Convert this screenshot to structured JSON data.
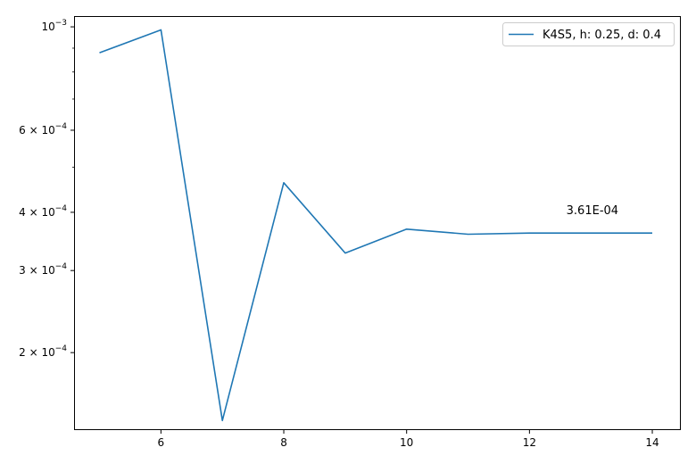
{
  "chart_data": {
    "type": "line",
    "title": "",
    "xlabel": "",
    "ylabel": "",
    "yscale": "log",
    "grid": false,
    "legend_position": "top-right",
    "xlim": [
      4.6,
      14.45
    ],
    "ylim": [
      0.000137,
      0.00105
    ],
    "x_ticks": [
      6,
      8,
      10,
      12,
      14
    ],
    "x_tick_labels": [
      "6",
      "8",
      "10",
      "12",
      "14"
    ],
    "y_ticks_major": [
      {
        "value": 0.001,
        "base": "10",
        "exp": "−3"
      },
      {
        "value": 0.0006,
        "base": "6 × 10",
        "exp": "−4"
      },
      {
        "value": 0.0004,
        "base": "4 × 10",
        "exp": "−4"
      },
      {
        "value": 0.0003,
        "base": "3 × 10",
        "exp": "−4"
      },
      {
        "value": 0.0002,
        "base": "2 × 10",
        "exp": "−4"
      }
    ],
    "y_ticks_minor": [
      0.0009,
      0.0008,
      0.0007,
      0.0005
    ],
    "series": [
      {
        "name": "K4S5, h: 0.25, d: 0.4",
        "color": "#1f77b4",
        "x": [
          5,
          6,
          7,
          8,
          9,
          10,
          11,
          12,
          13,
          14
        ],
        "values": [
          0.00088,
          0.000985,
          0.000143,
          0.000463,
          0.000327,
          0.000368,
          0.000359,
          0.000361,
          0.000361,
          0.000361
        ]
      }
    ],
    "annotations": [
      {
        "text": "3.61E-04",
        "x": 12.6,
        "y": 0.000396
      }
    ]
  }
}
